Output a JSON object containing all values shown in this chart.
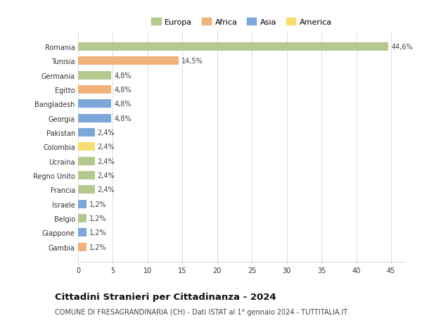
{
  "countries": [
    "Romania",
    "Tunisia",
    "Germania",
    "Egitto",
    "Bangladesh",
    "Georgia",
    "Pakistan",
    "Colombia",
    "Ucraina",
    "Regno Unito",
    "Francia",
    "Israele",
    "Belgio",
    "Giappone",
    "Gambia"
  ],
  "values": [
    44.6,
    14.5,
    4.8,
    4.8,
    4.8,
    4.8,
    2.4,
    2.4,
    2.4,
    2.4,
    2.4,
    1.2,
    1.2,
    1.2,
    1.2
  ],
  "labels": [
    "44,6%",
    "14,5%",
    "4,8%",
    "4,8%",
    "4,8%",
    "4,8%",
    "2,4%",
    "2,4%",
    "2,4%",
    "2,4%",
    "2,4%",
    "1,2%",
    "1,2%",
    "1,2%",
    "1,2%"
  ],
  "continents": [
    "Europa",
    "Africa",
    "Europa",
    "Africa",
    "Asia",
    "Asia",
    "Asia",
    "America",
    "Europa",
    "Europa",
    "Europa",
    "Asia",
    "Europa",
    "Asia",
    "Africa"
  ],
  "continent_colors": {
    "Europa": "#b5c98e",
    "Africa": "#f0b27a",
    "Asia": "#7da7d9",
    "America": "#f7dc6f"
  },
  "legend_order": [
    "Europa",
    "Africa",
    "Asia",
    "America"
  ],
  "xlim": [
    0,
    47
  ],
  "xticks": [
    0,
    5,
    10,
    15,
    20,
    25,
    30,
    35,
    40,
    45
  ],
  "title": "Cittadini Stranieri per Cittadinanza - 2024",
  "subtitle": "COMUNE DI FRESAGRANDINARIA (CH) - Dati ISTAT al 1° gennaio 2024 - TUTTITALIA.IT",
  "bg_color": "#ffffff",
  "grid_color": "#dddddd",
  "bar_height": 0.6,
  "label_fontsize": 7,
  "title_fontsize": 9.5,
  "subtitle_fontsize": 7,
  "tick_fontsize": 7,
  "legend_fontsize": 8
}
